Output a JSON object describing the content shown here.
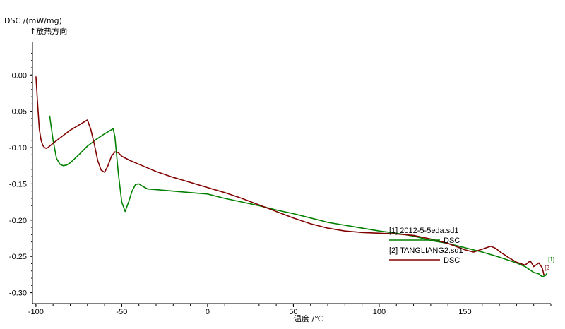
{
  "chart_data": {
    "type": "line",
    "ylabel": "DSC /(mW/mg)",
    "direction_note": "↑放热方向",
    "xlabel": "温度 /℃",
    "xlim": [
      -102,
      200
    ],
    "ylim": [
      -0.315,
      0.045
    ],
    "xticks": [
      -100,
      -50,
      0,
      50,
      100,
      150
    ],
    "yticks": [
      0.0,
      -0.05,
      -0.1,
      -0.15,
      -0.2,
      -0.25,
      -0.3
    ],
    "ytick_labels": [
      "0.00",
      "-0.05",
      "-0.10",
      "-0.15",
      "-0.20",
      "-0.25",
      "-0.30"
    ],
    "legend": [
      {
        "file": "[1] 2012-5-5eda.sd1",
        "series": "DSC",
        "color": "#008000"
      },
      {
        "file": "[2] TANGLIANG2.sd1",
        "series": "DSC",
        "color": "#800000"
      }
    ],
    "end_markers": [
      "[1]",
      "[2"
    ],
    "series": [
      {
        "name": "DSC",
        "color": "#008000",
        "x": [
          -92,
          -90,
          -88,
          -86,
          -84,
          -82,
          -80,
          -75,
          -70,
          -65,
          -60,
          -55,
          -54,
          -52,
          -50,
          -48,
          -46,
          -44,
          -42,
          -40,
          -38,
          -35,
          -30,
          -20,
          -10,
          0,
          10,
          20,
          30,
          40,
          50,
          60,
          70,
          80,
          90,
          100,
          110,
          120,
          130,
          140,
          150,
          160,
          170,
          180,
          185,
          190,
          193,
          195,
          197,
          198
        ],
        "y": [
          -0.056,
          -0.09,
          -0.115,
          -0.123,
          -0.125,
          -0.124,
          -0.121,
          -0.11,
          -0.098,
          -0.089,
          -0.081,
          -0.074,
          -0.085,
          -0.135,
          -0.175,
          -0.188,
          -0.175,
          -0.16,
          -0.151,
          -0.15,
          -0.153,
          -0.157,
          -0.158,
          -0.16,
          -0.162,
          -0.164,
          -0.17,
          -0.175,
          -0.18,
          -0.186,
          -0.191,
          -0.197,
          -0.203,
          -0.207,
          -0.211,
          -0.215,
          -0.218,
          -0.222,
          -0.228,
          -0.232,
          -0.238,
          -0.244,
          -0.251,
          -0.259,
          -0.264,
          -0.272,
          -0.274,
          -0.278,
          -0.276,
          -0.272
        ]
      },
      {
        "name": "DSC",
        "color": "#800000",
        "x": [
          -100,
          -99,
          -98,
          -97,
          -96,
          -95,
          -94,
          -93,
          -92,
          -90,
          -85,
          -80,
          -75,
          -70,
          -68,
          -66,
          -64,
          -62,
          -60,
          -58,
          -56,
          -54,
          -52,
          -50,
          -45,
          -40,
          -30,
          -20,
          -10,
          0,
          10,
          20,
          30,
          40,
          50,
          60,
          70,
          80,
          90,
          100,
          110,
          120,
          130,
          140,
          150,
          155,
          160,
          165,
          168,
          170,
          175,
          180,
          185,
          188,
          190,
          193,
          195,
          196
        ],
        "y": [
          -0.002,
          -0.04,
          -0.075,
          -0.09,
          -0.097,
          -0.1,
          -0.101,
          -0.1,
          -0.098,
          -0.094,
          -0.085,
          -0.076,
          -0.069,
          -0.062,
          -0.075,
          -0.095,
          -0.118,
          -0.131,
          -0.134,
          -0.125,
          -0.112,
          -0.106,
          -0.107,
          -0.112,
          -0.118,
          -0.123,
          -0.133,
          -0.141,
          -0.148,
          -0.155,
          -0.162,
          -0.17,
          -0.179,
          -0.188,
          -0.197,
          -0.205,
          -0.211,
          -0.215,
          -0.217,
          -0.218,
          -0.219,
          -0.221,
          -0.226,
          -0.232,
          -0.241,
          -0.244,
          -0.24,
          -0.236,
          -0.239,
          -0.243,
          -0.251,
          -0.258,
          -0.262,
          -0.256,
          -0.264,
          -0.259,
          -0.266,
          -0.276
        ]
      }
    ]
  }
}
